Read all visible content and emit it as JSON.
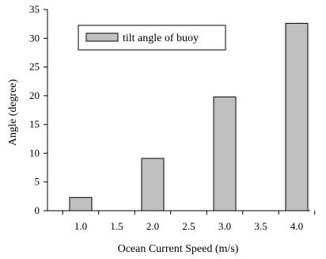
{
  "chart_data": {
    "type": "bar",
    "categories": [
      "1.0",
      "1.5",
      "2.0",
      "2.5",
      "3.0",
      "3.5",
      "4.0"
    ],
    "series": [
      {
        "name": "tilt angle of buoy",
        "values": [
          2.3,
          0,
          9.1,
          0,
          19.8,
          0,
          32.6
        ]
      }
    ],
    "xlabel": "Ocean Current Speed (m/s)",
    "ylabel": "Angle (degree)",
    "ylim": [
      0,
      35
    ],
    "yticks": [
      0,
      5,
      10,
      15,
      20,
      25,
      30,
      35
    ],
    "grid": false,
    "legend_position": "top-left",
    "colors": {
      "bar_fill": "#c0c0c0",
      "bar_stroke": "#000000",
      "axis": "#000000"
    }
  }
}
